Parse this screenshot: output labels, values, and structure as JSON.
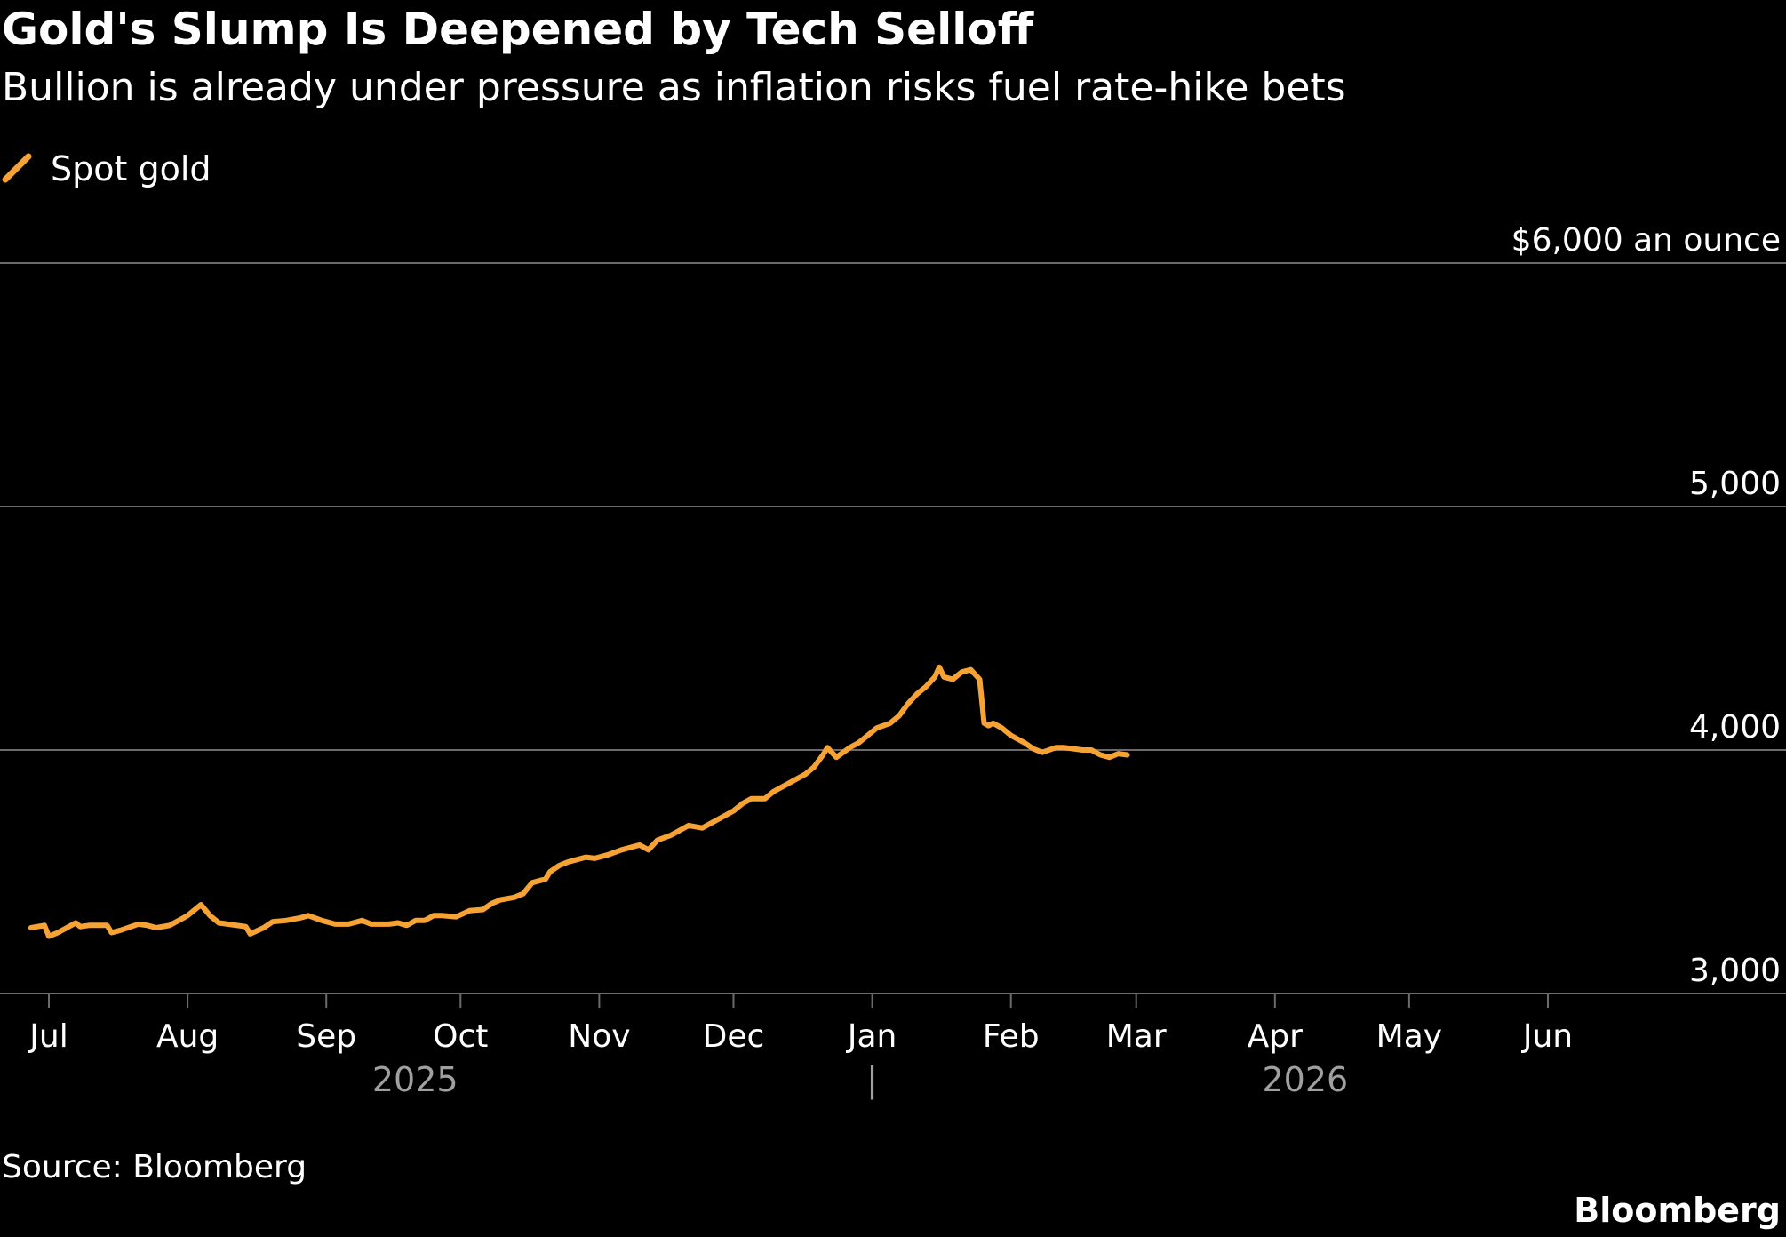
{
  "colors": {
    "background": "#000000",
    "series": "#f7a234",
    "gridline": "#6b6b6b",
    "text": "#ffffff",
    "year_text": "#a0a0a0"
  },
  "icons": {
    "legend": "series-line-swatch-icon"
  },
  "source": "Source: Bloomberg",
  "brand": "Bloomberg",
  "chart_data": {
    "type": "line",
    "title": "Gold's Slump Is Deepened by Tech Selloff",
    "subtitle": "Bullion is already under pressure as inflation risks fuel rate-hike bets",
    "series": [
      {
        "name": "Spot gold",
        "points": [
          [
            "2025-06-27",
            3270
          ],
          [
            "2025-06-30",
            3280
          ],
          [
            "2025-07-01",
            3235
          ],
          [
            "2025-07-03",
            3250
          ],
          [
            "2025-07-07",
            3290
          ],
          [
            "2025-07-08",
            3275
          ],
          [
            "2025-07-10",
            3280
          ],
          [
            "2025-07-14",
            3280
          ],
          [
            "2025-07-15",
            3250
          ],
          [
            "2025-07-17",
            3260
          ],
          [
            "2025-07-21",
            3285
          ],
          [
            "2025-07-23",
            3280
          ],
          [
            "2025-07-25",
            3270
          ],
          [
            "2025-07-28",
            3280
          ],
          [
            "2025-07-31",
            3310
          ],
          [
            "2025-08-01",
            3320
          ],
          [
            "2025-08-04",
            3365
          ],
          [
            "2025-08-06",
            3320
          ],
          [
            "2025-08-08",
            3290
          ],
          [
            "2025-08-12",
            3280
          ],
          [
            "2025-08-14",
            3275
          ],
          [
            "2025-08-15",
            3245
          ],
          [
            "2025-08-18",
            3270
          ],
          [
            "2025-08-20",
            3295
          ],
          [
            "2025-08-23",
            3300
          ],
          [
            "2025-08-26",
            3310
          ],
          [
            "2025-08-28",
            3320
          ],
          [
            "2025-08-31",
            3300
          ],
          [
            "2025-09-03",
            3285
          ],
          [
            "2025-09-06",
            3285
          ],
          [
            "2025-09-09",
            3300
          ],
          [
            "2025-09-11",
            3285
          ],
          [
            "2025-09-15",
            3285
          ],
          [
            "2025-09-17",
            3290
          ],
          [
            "2025-09-19",
            3280
          ],
          [
            "2025-09-21",
            3300
          ],
          [
            "2025-09-23",
            3300
          ],
          [
            "2025-09-25",
            3320
          ],
          [
            "2025-09-27",
            3320
          ],
          [
            "2025-09-30",
            3315
          ],
          [
            "2025-10-03",
            3340
          ],
          [
            "2025-10-06",
            3345
          ],
          [
            "2025-10-08",
            3370
          ],
          [
            "2025-10-10",
            3385
          ],
          [
            "2025-10-13",
            3395
          ],
          [
            "2025-10-15",
            3410
          ],
          [
            "2025-10-17",
            3455
          ],
          [
            "2025-10-20",
            3470
          ],
          [
            "2025-10-21",
            3500
          ],
          [
            "2025-10-23",
            3525
          ],
          [
            "2025-10-25",
            3540
          ],
          [
            "2025-10-27",
            3550
          ],
          [
            "2025-10-29",
            3560
          ],
          [
            "2025-10-31",
            3555
          ],
          [
            "2025-11-03",
            3570
          ],
          [
            "2025-11-06",
            3590
          ],
          [
            "2025-11-10",
            3610
          ],
          [
            "2025-11-12",
            3590
          ],
          [
            "2025-11-14",
            3630
          ],
          [
            "2025-11-17",
            3650
          ],
          [
            "2025-11-19",
            3670
          ],
          [
            "2025-11-21",
            3690
          ],
          [
            "2025-11-24",
            3680
          ],
          [
            "2025-11-26",
            3700
          ],
          [
            "2025-11-28",
            3720
          ],
          [
            "2025-12-01",
            3750
          ],
          [
            "2025-12-03",
            3780
          ],
          [
            "2025-12-05",
            3800
          ],
          [
            "2025-12-08",
            3800
          ],
          [
            "2025-12-10",
            3830
          ],
          [
            "2025-12-12",
            3850
          ],
          [
            "2025-12-15",
            3880
          ],
          [
            "2025-12-17",
            3900
          ],
          [
            "2025-12-19",
            3930
          ],
          [
            "2025-12-21",
            3980
          ],
          [
            "2025-12-22",
            4010
          ],
          [
            "2025-12-24",
            3970
          ],
          [
            "2025-12-27",
            4010
          ],
          [
            "2025-12-29",
            4030
          ],
          [
            "2025-12-31",
            4060
          ],
          [
            "2026-01-02",
            4090
          ],
          [
            "2026-01-05",
            4110
          ],
          [
            "2026-01-07",
            4140
          ],
          [
            "2026-01-09",
            4190
          ],
          [
            "2026-01-11",
            4230
          ],
          [
            "2026-01-13",
            4260
          ],
          [
            "2026-01-15",
            4300
          ],
          [
            "2026-01-16",
            4340
          ],
          [
            "2026-01-17",
            4300
          ],
          [
            "2026-01-19",
            4290
          ],
          [
            "2026-01-21",
            4320
          ],
          [
            "2026-01-23",
            4330
          ],
          [
            "2026-01-25",
            4290
          ],
          [
            "2026-01-26",
            4110
          ],
          [
            "2026-01-27",
            4100
          ],
          [
            "2026-01-28",
            4110
          ],
          [
            "2026-01-30",
            4090
          ],
          [
            "2026-02-01",
            4060
          ],
          [
            "2026-02-04",
            4030
          ],
          [
            "2026-02-06",
            4005
          ],
          [
            "2026-02-08",
            3990
          ],
          [
            "2026-02-11",
            4010
          ],
          [
            "2026-02-13",
            4010
          ],
          [
            "2026-02-15",
            4005
          ],
          [
            "2026-02-17",
            4000
          ],
          [
            "2026-02-19",
            4000
          ],
          [
            "2026-02-21",
            3980
          ],
          [
            "2026-02-23",
            3970
          ],
          [
            "2026-02-25",
            3985
          ],
          [
            "2026-02-27",
            3980
          ]
        ]
      }
    ],
    "x_axis": {
      "ticks": [
        {
          "date": "2025-07-01",
          "label": "Jul"
        },
        {
          "date": "2025-08-01",
          "label": "Aug"
        },
        {
          "date": "2025-09-01",
          "label": "Sep"
        },
        {
          "date": "2025-10-01",
          "label": "Oct"
        },
        {
          "date": "2025-11-01",
          "label": "Nov"
        },
        {
          "date": "2025-12-01",
          "label": "Dec"
        },
        {
          "date": "2026-01-01",
          "label": "Jan"
        },
        {
          "date": "2026-02-01",
          "label": "Feb"
        },
        {
          "date": "2026-03-01",
          "label": "Mar"
        },
        {
          "date": "2026-04-01",
          "label": "Apr"
        },
        {
          "date": "2026-05-01",
          "label": "May"
        },
        {
          "date": "2026-06-01",
          "label": "Jun"
        }
      ],
      "years": [
        {
          "label": "2025"
        },
        {
          "label": "2026"
        }
      ],
      "year_divider": "|",
      "range": [
        "2025-06-24",
        "2026-07-24"
      ]
    },
    "y_axis": {
      "range": [
        3000,
        6000
      ],
      "ticks": [
        {
          "value": 3000,
          "label": "3,000"
        },
        {
          "value": 4000,
          "label": "4,000"
        },
        {
          "value": 5000,
          "label": "5,000"
        },
        {
          "value": 6000,
          "label": "$6,000 an ounce"
        }
      ],
      "grid": true
    },
    "legend": {
      "position": "top-left"
    }
  }
}
